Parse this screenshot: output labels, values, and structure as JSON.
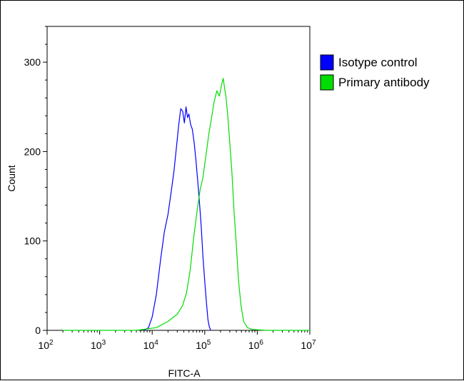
{
  "chart_data": {
    "type": "line",
    "title": "",
    "xlabel": "FITC-A",
    "ylabel": "Count",
    "x_scale": "log",
    "xlim": [
      100,
      10000000
    ],
    "ylim": [
      0,
      340
    ],
    "grid": false,
    "legend_position": "top-right",
    "x_ticks": [
      {
        "value": 100,
        "base": "10",
        "exp": "2"
      },
      {
        "value": 1000,
        "base": "10",
        "exp": "3"
      },
      {
        "value": 10000,
        "base": "10",
        "exp": "4"
      },
      {
        "value": 100000,
        "base": "10",
        "exp": "5"
      },
      {
        "value": 1000000,
        "base": "10",
        "exp": "6"
      },
      {
        "value": 10000000,
        "base": "10",
        "exp": "7"
      }
    ],
    "y_ticks": [
      0,
      100,
      200,
      300
    ],
    "series": [
      {
        "name": "Isotype control",
        "color": "#0000ff",
        "points": [
          [
            7000,
            0
          ],
          [
            8500,
            3
          ],
          [
            10000,
            15
          ],
          [
            12000,
            40
          ],
          [
            14500,
            80
          ],
          [
            17000,
            110
          ],
          [
            20000,
            130
          ],
          [
            23000,
            155
          ],
          [
            26000,
            178
          ],
          [
            29000,
            205
          ],
          [
            32000,
            230
          ],
          [
            35000,
            248
          ],
          [
            38000,
            245
          ],
          [
            41000,
            232
          ],
          [
            44000,
            250
          ],
          [
            47000,
            238
          ],
          [
            50000,
            242
          ],
          [
            54000,
            230
          ],
          [
            58000,
            225
          ],
          [
            63000,
            210
          ],
          [
            68000,
            190
          ],
          [
            74000,
            165
          ],
          [
            80000,
            140
          ],
          [
            86000,
            115
          ],
          [
            92000,
            85
          ],
          [
            100000,
            55
          ],
          [
            108000,
            30
          ],
          [
            115000,
            12
          ],
          [
            122000,
            4
          ],
          [
            130000,
            0
          ]
        ]
      },
      {
        "name": "Primary antibody",
        "color": "#00dd00",
        "points": [
          [
            200,
            0
          ],
          [
            5000,
            0
          ],
          [
            12000,
            3
          ],
          [
            20000,
            10
          ],
          [
            30000,
            18
          ],
          [
            38000,
            28
          ],
          [
            45000,
            42
          ],
          [
            53000,
            68
          ],
          [
            62000,
            105
          ],
          [
            72000,
            135
          ],
          [
            82000,
            158
          ],
          [
            92000,
            170
          ],
          [
            105000,
            195
          ],
          [
            120000,
            220
          ],
          [
            135000,
            238
          ],
          [
            150000,
            255
          ],
          [
            170000,
            268
          ],
          [
            190000,
            262
          ],
          [
            210000,
            275
          ],
          [
            225000,
            282
          ],
          [
            240000,
            270
          ],
          [
            255000,
            260
          ],
          [
            275000,
            240
          ],
          [
            300000,
            210
          ],
          [
            330000,
            175
          ],
          [
            360000,
            135
          ],
          [
            400000,
            95
          ],
          [
            440000,
            55
          ],
          [
            490000,
            28
          ],
          [
            550000,
            10
          ],
          [
            650000,
            3
          ],
          [
            800000,
            1
          ],
          [
            1500000,
            0
          ],
          [
            10000000,
            0
          ]
        ]
      }
    ]
  }
}
